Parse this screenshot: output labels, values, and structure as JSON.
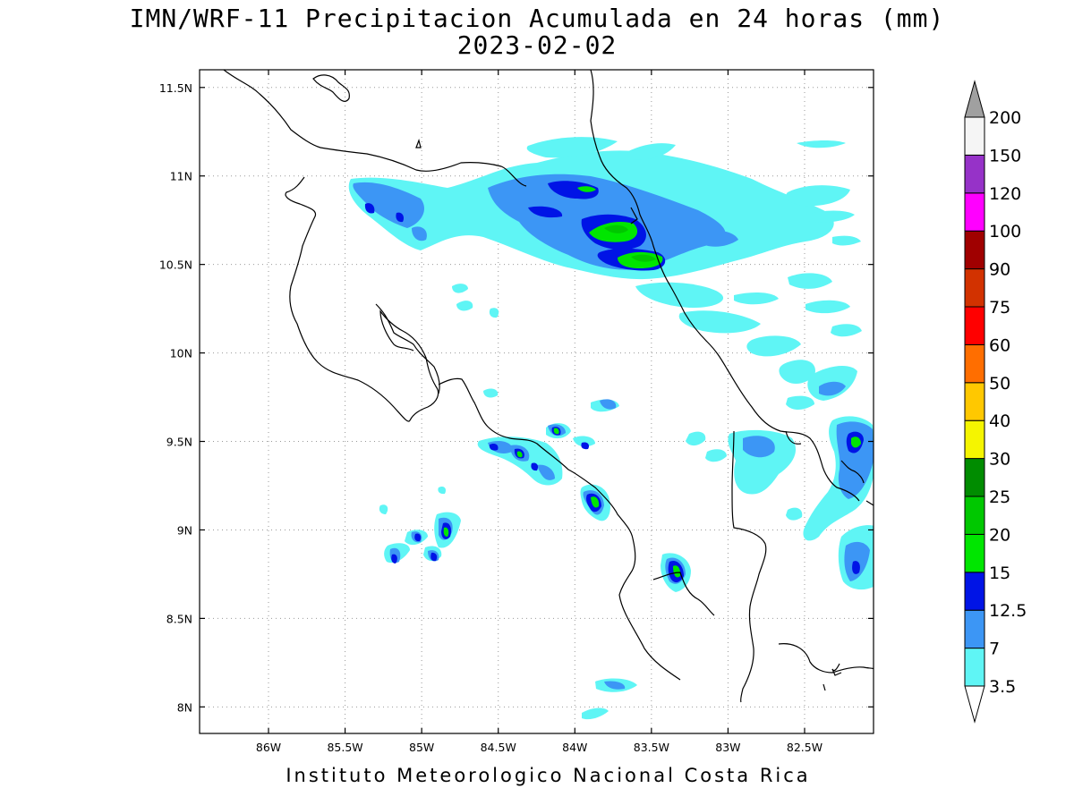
{
  "title": "IMN/WRF-11 Precipitacion Acumulada en 24 horas (mm)",
  "date": "2023-02-02",
  "footer": "Instituto Meteorologico Nacional Costa Rica",
  "map": {
    "lon_range": [
      -86.45,
      -82.05
    ],
    "lat_range": [
      7.85,
      11.6
    ],
    "lat_ticks": [
      {
        "value": 11.5,
        "label": "11.5N"
      },
      {
        "value": 11.0,
        "label": "11N"
      },
      {
        "value": 10.5,
        "label": "10.5N"
      },
      {
        "value": 10.0,
        "label": "10N"
      },
      {
        "value": 9.5,
        "label": "9.5N"
      },
      {
        "value": 9.0,
        "label": "9N"
      },
      {
        "value": 8.5,
        "label": "8.5N"
      },
      {
        "value": 8.0,
        "label": "8N"
      }
    ],
    "lon_ticks": [
      {
        "value": -86.0,
        "label": "86W"
      },
      {
        "value": -85.5,
        "label": "85.5W"
      },
      {
        "value": -85.0,
        "label": "85W"
      },
      {
        "value": -84.5,
        "label": "84.5W"
      },
      {
        "value": -84.0,
        "label": "84W"
      },
      {
        "value": -83.5,
        "label": "83.5W"
      },
      {
        "value": -83.0,
        "label": "83W"
      },
      {
        "value": -82.5,
        "label": "82.5W"
      }
    ]
  },
  "colorbar": {
    "bins": [
      {
        "label": "3.5",
        "color": "#5ff5f5"
      },
      {
        "label": "7",
        "color": "#3c96f5"
      },
      {
        "label": "12.5",
        "color": "#0014e6"
      },
      {
        "label": "15",
        "color": "#00e600"
      },
      {
        "label": "20",
        "color": "#00c800"
      },
      {
        "label": "25",
        "color": "#008c00"
      },
      {
        "label": "30",
        "color": "#f5f500"
      },
      {
        "label": "40",
        "color": "#ffc800"
      },
      {
        "label": "50",
        "color": "#ff6e00"
      },
      {
        "label": "60",
        "color": "#ff0000"
      },
      {
        "label": "75",
        "color": "#d23200"
      },
      {
        "label": "90",
        "color": "#a00000"
      },
      {
        "label": "100",
        "color": "#ff00ff"
      },
      {
        "label": "120",
        "color": "#9632c8"
      },
      {
        "label": "150",
        "color": "#f5f5f5"
      },
      {
        "label": "200",
        "color": "#a0a0a0"
      }
    ],
    "under_color": "#ffffff",
    "over_color": "#a0a0a0"
  }
}
